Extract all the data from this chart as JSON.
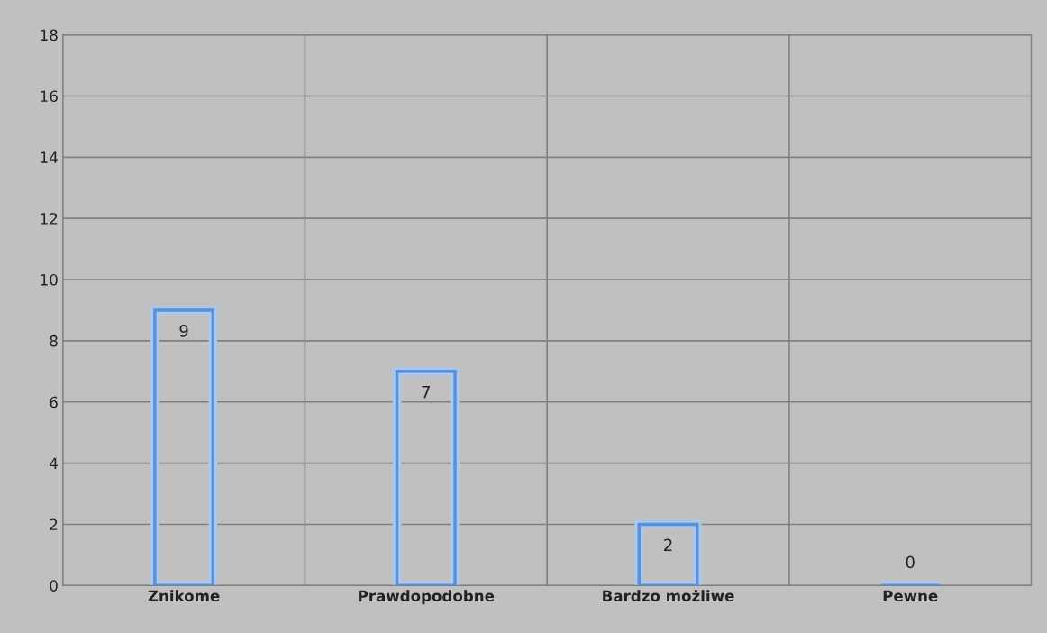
{
  "chart_data": {
    "type": "bar",
    "categories": [
      "Znikome",
      "Prawdopodobne",
      "Bardzo możliwe",
      "Pewne"
    ],
    "values": [
      9,
      7,
      2,
      0
    ],
    "color": "#5b8fd6",
    "ylim": [
      0,
      18
    ],
    "yticks": [
      0,
      2,
      4,
      6,
      8,
      10,
      12,
      14,
      16,
      18
    ],
    "grid": true,
    "data_labels": true
  }
}
